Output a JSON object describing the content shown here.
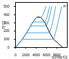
{
  "chart_data": {
    "type": "line",
    "x_label": "s[J/(kg K)]",
    "y_label": "T[°C]",
    "xlim": [
      0,
      10000
    ],
    "xticks": [
      0,
      2000,
      4000,
      6000,
      8000
    ],
    "ylim": [
      0,
      550
    ],
    "yticks": [
      0,
      100,
      200,
      300,
      400,
      500
    ],
    "grid": false,
    "series": [
      {
        "color": "#000000",
        "x": [
          0,
          1300,
          2140,
          2920,
          3360,
          4020,
          4410
        ],
        "values": [
          0,
          100,
          180,
          264,
          311,
          366,
          374
        ]
      },
      {
        "color": "#000000",
        "x": [
          4410,
          4930,
          5610,
          5970,
          6590,
          7360,
          9160
        ],
        "values": [
          374,
          366,
          311,
          264,
          180,
          100,
          0
        ]
      },
      {
        "color": "#4aa0d0",
        "x": [
          0,
          1300,
          7360,
          7800,
          8200,
          8550,
          8900
        ],
        "values": [
          0,
          100,
          100,
          200,
          300,
          400,
          500
        ]
      },
      {
        "color": "#4aa0d0",
        "x": [
          0,
          1300,
          2140,
          6590,
          6950,
          7300,
          7750
        ],
        "values": [
          0,
          100,
          180,
          180,
          250,
          350,
          500
        ]
      },
      {
        "color": "#4aa0d0",
        "x": [
          0,
          1300,
          2140,
          2920,
          5970,
          6200,
          6650,
          7000
        ],
        "values": [
          0,
          100,
          180,
          264,
          264,
          300,
          400,
          500
        ]
      },
      {
        "color": "#4aa0d0",
        "x": [
          0,
          1300,
          2140,
          2920,
          3360,
          5610,
          6000,
          6600
        ],
        "values": [
          0,
          100,
          180,
          264,
          311,
          311,
          350,
          500
        ]
      },
      {
        "color": "#4aa0d0",
        "x": [
          0,
          1300,
          2140,
          2920,
          3360,
          4020,
          4930,
          5300,
          5900
        ],
        "values": [
          0,
          100,
          180,
          264,
          311,
          366,
          366,
          400,
          500
        ]
      }
    ],
    "annotations": [
      {
        "text": "p",
        "x": 9500,
        "y": 510
      }
    ]
  }
}
